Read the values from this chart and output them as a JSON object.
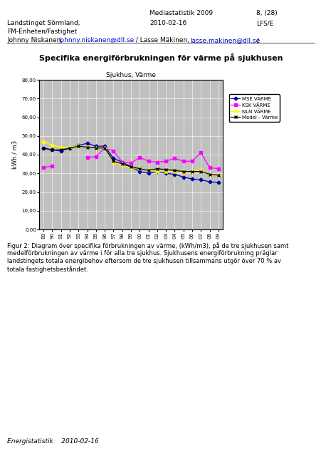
{
  "title_main": "Specifika energiförbrukningen för värme på sjukhusen",
  "chart_title": "Sjukhus, Värme",
  "ylabel": "kWh / m3",
  "ylim": [
    0,
    80
  ],
  "yticks": [
    0,
    10,
    20,
    30,
    40,
    50,
    60,
    70,
    80
  ],
  "ytick_labels": [
    "0,00",
    "10,00",
    "20,00",
    "30,00",
    "40,00",
    "50,00",
    "60,00",
    "70,00",
    "80,00"
  ],
  "years": [
    1989,
    1990,
    1991,
    1992,
    1993,
    1994,
    1995,
    1996,
    1997,
    1998,
    1999,
    2000,
    2001,
    2002,
    2003,
    2004,
    2005,
    2006,
    2007,
    2008,
    2009
  ],
  "MSE_VARME": [
    43.5,
    42.5,
    42.0,
    43.5,
    45.0,
    46.0,
    44.5,
    44.5,
    38.0,
    36.0,
    33.5,
    31.0,
    30.0,
    31.0,
    30.0,
    29.5,
    28.0,
    27.0,
    26.5,
    25.5,
    25.0
  ],
  "KSK_VARME": [
    33.0,
    34.0,
    null,
    null,
    null,
    38.5,
    39.0,
    43.5,
    42.0,
    36.0,
    35.5,
    38.5,
    36.5,
    36.0,
    36.5,
    38.0,
    36.5,
    36.5,
    41.0,
    33.0,
    32.5
  ],
  "NLN_VARME": [
    47.0,
    45.0,
    44.0,
    44.0,
    44.5,
    44.0,
    43.5,
    43.5,
    36.0,
    34.5,
    33.0,
    32.5,
    31.5,
    31.0,
    31.0,
    31.0,
    30.5,
    31.0,
    31.5,
    29.5,
    29.0
  ],
  "Medel_Varme": [
    43.5,
    42.5,
    42.5,
    43.5,
    44.5,
    44.0,
    43.5,
    43.5,
    36.5,
    35.0,
    33.5,
    32.5,
    31.5,
    32.5,
    32.0,
    31.5,
    31.0,
    31.0,
    31.0,
    29.5,
    29.0
  ],
  "MSE_color": "#0000AA",
  "KSK_color": "#FF00FF",
  "NLN_color": "#FFFF00",
  "Medel_color": "#000000",
  "background_color": "#C0C0C0",
  "footer_line1": "Figur 2: Diagram över specifika förbrukningen av värme, (kWh/m3), på de tre sjukhusen samt",
  "footer_line2": "medelförbrukningen av värme i för alla tre sjukhus. Sjukhusens energiförbrukning präglar",
  "footer_line3": "landstingets totala energibehov eftersom de tre sjukhusen tillsammans utgör över 70 % av",
  "footer_line4": "totala fastighetsbeståndet.",
  "footer_bottom": "Energistatistik    2010-02-16"
}
